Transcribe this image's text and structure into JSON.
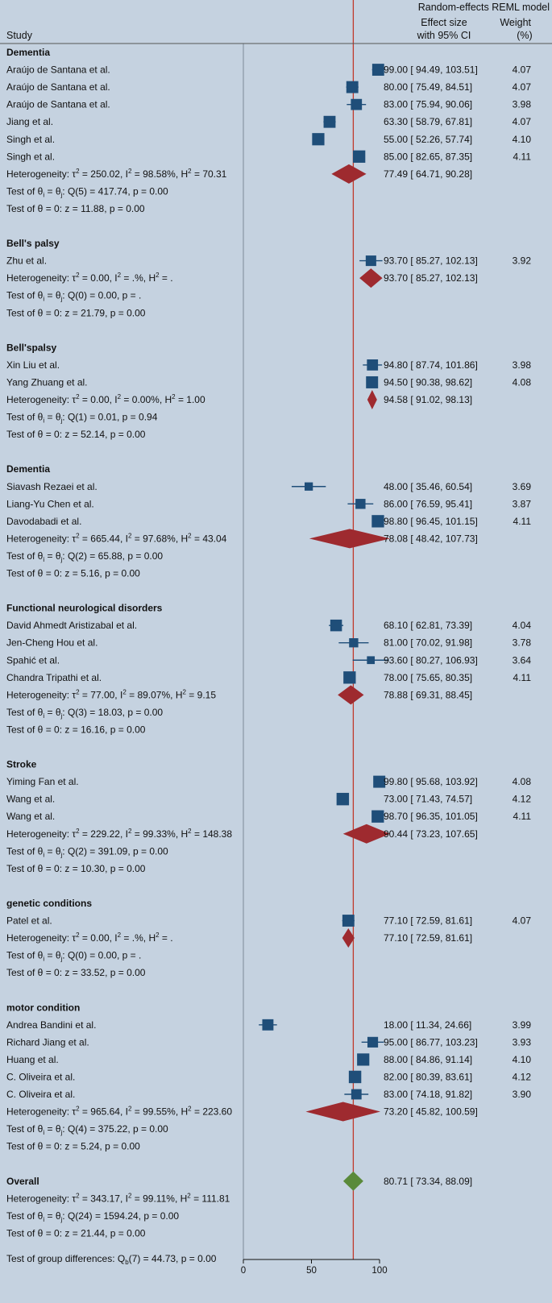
{
  "header": {
    "model": "Random-effects REML model",
    "study": "Study",
    "effect_line1": "Effect size",
    "effect_line2": "with 95% CI",
    "weight_line1": "Weight",
    "weight_line2": "(%)"
  },
  "colors": {
    "background": "#c5d2e0",
    "square": "#1f4e79",
    "diamond": "#9e2a2f",
    "overall_diamond": "#5a8a3a",
    "reference_line": "#c0392b",
    "null_line": "#7d8a99"
  },
  "chart_data": {
    "type": "forest",
    "title": "Random-effects REML model",
    "xlabel": "",
    "xlim": [
      0,
      100
    ],
    "xticks": [
      "0",
      "50",
      "100"
    ],
    "overall_reference": 80.71,
    "groups": [
      {
        "name": "Dementia",
        "studies": [
          {
            "label": "Araújo de Santana et al.",
            "es": 99.0,
            "lo": 94.49,
            "hi": 103.51,
            "es_text": "99.00",
            "lo_text": "94.49",
            "hi_text": "103.51",
            "weight": "4.07"
          },
          {
            "label": "Araújo de Santana et al.",
            "es": 80.0,
            "lo": 75.49,
            "hi": 84.51,
            "es_text": "80.00",
            "lo_text": "75.49",
            "hi_text": "84.51",
            "weight": "4.07"
          },
          {
            "label": "Araújo de Santana et al.",
            "es": 83.0,
            "lo": 75.94,
            "hi": 90.06,
            "es_text": "83.00",
            "lo_text": "75.94",
            "hi_text": "90.06",
            "weight": "3.98"
          },
          {
            "label": "Jiang et al.",
            "es": 63.3,
            "lo": 58.79,
            "hi": 67.81,
            "es_text": "63.30",
            "lo_text": "58.79",
            "hi_text": "67.81",
            "weight": "4.07"
          },
          {
            "label": "Singh et al.",
            "es": 55.0,
            "lo": 52.26,
            "hi": 57.74,
            "es_text": "55.00",
            "lo_text": "52.26",
            "hi_text": "57.74",
            "weight": "4.10"
          },
          {
            "label": "Singh et al.",
            "es": 85.0,
            "lo": 82.65,
            "hi": 87.35,
            "es_text": "85.00",
            "lo_text": "82.65",
            "hi_text": "87.35",
            "weight": "4.11"
          }
        ],
        "summary": {
          "es": 77.49,
          "lo": 64.71,
          "hi": 90.28,
          "es_text": "77.49",
          "lo_text": "64.71",
          "hi_text": "90.28"
        },
        "heterogeneity": {
          "tau2": "250.02",
          "i2": "98.58%",
          "h2": "70.31"
        },
        "q_test": {
          "df": "5",
          "q": "417.74",
          "p": "0.00"
        },
        "z_test": {
          "z": "11.88",
          "p": "0.00"
        }
      },
      {
        "name": "Bell's palsy",
        "studies": [
          {
            "label": "Zhu et al.",
            "es": 93.7,
            "lo": 85.27,
            "hi": 102.13,
            "es_text": "93.70",
            "lo_text": "85.27",
            "hi_text": "102.13",
            "weight": "3.92"
          }
        ],
        "summary": {
          "es": 93.7,
          "lo": 85.27,
          "hi": 102.13,
          "es_text": "93.70",
          "lo_text": "85.27",
          "hi_text": "102.13"
        },
        "heterogeneity": {
          "tau2": "0.00",
          "i2": ".%",
          "h2": "."
        },
        "q_test": {
          "df": "0",
          "q": "0.00",
          "p": "."
        },
        "z_test": {
          "z": "21.79",
          "p": "0.00"
        }
      },
      {
        "name": "Bell'spalsy",
        "studies": [
          {
            "label": "Xin Liu et al.",
            "es": 94.8,
            "lo": 87.74,
            "hi": 101.86,
            "es_text": "94.80",
            "lo_text": "87.74",
            "hi_text": "101.86",
            "weight": "3.98"
          },
          {
            "label": "Yang Zhuang et al.",
            "es": 94.5,
            "lo": 90.38,
            "hi": 98.62,
            "es_text": "94.50",
            "lo_text": "90.38",
            "hi_text": "98.62",
            "weight": "4.08"
          }
        ],
        "summary": {
          "es": 94.58,
          "lo": 91.02,
          "hi": 98.13,
          "es_text": "94.58",
          "lo_text": "91.02",
          "hi_text": "98.13"
        },
        "heterogeneity": {
          "tau2": "0.00",
          "i2": "0.00%",
          "h2": "1.00"
        },
        "q_test": {
          "df": "1",
          "q": "0.01",
          "p": "0.94"
        },
        "z_test": {
          "z": "52.14",
          "p": "0.00"
        }
      },
      {
        "name": "Dementia",
        "studies": [
          {
            "label": "Siavash Rezaei et al.",
            "es": 48.0,
            "lo": 35.46,
            "hi": 60.54,
            "es_text": "48.00",
            "lo_text": "35.46",
            "hi_text": "60.54",
            "weight": "3.69"
          },
          {
            "label": "Liang-Yu Chen et al.",
            "es": 86.0,
            "lo": 76.59,
            "hi": 95.41,
            "es_text": "86.00",
            "lo_text": "76.59",
            "hi_text": "95.41",
            "weight": "3.87"
          },
          {
            "label": "Davodabadi et al.",
            "es": 98.8,
            "lo": 96.45,
            "hi": 101.15,
            "es_text": "98.80",
            "lo_text": "96.45",
            "hi_text": "101.15",
            "weight": "4.11"
          }
        ],
        "summary": {
          "es": 78.08,
          "lo": 48.42,
          "hi": 107.73,
          "es_text": "78.08",
          "lo_text": "48.42",
          "hi_text": "107.73"
        },
        "heterogeneity": {
          "tau2": "665.44",
          "i2": "97.68%",
          "h2": "43.04"
        },
        "q_test": {
          "df": "2",
          "q": "65.88",
          "p": "0.00"
        },
        "z_test": {
          "z": "5.16",
          "p": "0.00"
        }
      },
      {
        "name": "Functional neurological disorders",
        "studies": [
          {
            "label": "David Ahmedt Aristizabal et al.",
            "es": 68.1,
            "lo": 62.81,
            "hi": 73.39,
            "es_text": "68.10",
            "lo_text": "62.81",
            "hi_text": "73.39",
            "weight": "4.04"
          },
          {
            "label": "Jen-Cheng Hou et al.",
            "es": 81.0,
            "lo": 70.02,
            "hi": 91.98,
            "es_text": "81.00",
            "lo_text": "70.02",
            "hi_text": "91.98",
            "weight": "3.78"
          },
          {
            "label": "Spahić et al.",
            "es": 93.6,
            "lo": 80.27,
            "hi": 106.93,
            "es_text": "93.60",
            "lo_text": "80.27",
            "hi_text": "106.93",
            "weight": "3.64"
          },
          {
            "label": "Chandra Tripathi et al.",
            "es": 78.0,
            "lo": 75.65,
            "hi": 80.35,
            "es_text": "78.00",
            "lo_text": "75.65",
            "hi_text": "80.35",
            "weight": "4.11"
          }
        ],
        "summary": {
          "es": 78.88,
          "lo": 69.31,
          "hi": 88.45,
          "es_text": "78.88",
          "lo_text": "69.31",
          "hi_text": "88.45"
        },
        "heterogeneity": {
          "tau2": "77.00",
          "i2": "89.07%",
          "h2": "9.15"
        },
        "q_test": {
          "df": "3",
          "q": "18.03",
          "p": "0.00"
        },
        "z_test": {
          "z": "16.16",
          "p": "0.00"
        }
      },
      {
        "name": "Stroke",
        "studies": [
          {
            "label": "Yiming Fan et al.",
            "es": 99.8,
            "lo": 95.68,
            "hi": 103.92,
            "es_text": "99.80",
            "lo_text": "95.68",
            "hi_text": "103.92",
            "weight": "4.08"
          },
          {
            "label": "Wang et al.",
            "es": 73.0,
            "lo": 71.43,
            "hi": 74.57,
            "es_text": "73.00",
            "lo_text": "71.43",
            "hi_text": "74.57",
            "weight": "4.12"
          },
          {
            "label": "Wang et al.",
            "es": 98.7,
            "lo": 96.35,
            "hi": 101.05,
            "es_text": "98.70",
            "lo_text": "96.35",
            "hi_text": "101.05",
            "weight": "4.11"
          }
        ],
        "summary": {
          "es": 90.44,
          "lo": 73.23,
          "hi": 107.65,
          "es_text": "90.44",
          "lo_text": "73.23",
          "hi_text": "107.65"
        },
        "heterogeneity": {
          "tau2": "229.22",
          "i2": "99.33%",
          "h2": "148.38"
        },
        "q_test": {
          "df": "2",
          "q": "391.09",
          "p": "0.00"
        },
        "z_test": {
          "z": "10.30",
          "p": "0.00"
        }
      },
      {
        "name": "genetic conditions",
        "studies": [
          {
            "label": "Patel et al.",
            "es": 77.1,
            "lo": 72.59,
            "hi": 81.61,
            "es_text": "77.10",
            "lo_text": "72.59",
            "hi_text": "81.61",
            "weight": "4.07"
          }
        ],
        "summary": {
          "es": 77.1,
          "lo": 72.59,
          "hi": 81.61,
          "es_text": "77.10",
          "lo_text": "72.59",
          "hi_text": "81.61"
        },
        "heterogeneity": {
          "tau2": "0.00",
          "i2": ".%",
          "h2": "."
        },
        "q_test": {
          "df": "0",
          "q": "0.00",
          "p": "."
        },
        "z_test": {
          "z": "33.52",
          "p": "0.00"
        }
      },
      {
        "name": "motor condition",
        "studies": [
          {
            "label": "Andrea Bandini et al.",
            "es": 18.0,
            "lo": 11.34,
            "hi": 24.66,
            "es_text": "18.00",
            "lo_text": "11.34",
            "hi_text": "24.66",
            "weight": "3.99"
          },
          {
            "label": "Richard Jiang et al.",
            "es": 95.0,
            "lo": 86.77,
            "hi": 103.23,
            "es_text": "95.00",
            "lo_text": "86.77",
            "hi_text": "103.23",
            "weight": "3.93"
          },
          {
            "label": "Huang et al.",
            "es": 88.0,
            "lo": 84.86,
            "hi": 91.14,
            "es_text": "88.00",
            "lo_text": "84.86",
            "hi_text": "91.14",
            "weight": "4.10"
          },
          {
            "label": "C. Oliveira et al.",
            "es": 82.0,
            "lo": 80.39,
            "hi": 83.61,
            "es_text": "82.00",
            "lo_text": "80.39",
            "hi_text": "83.61",
            "weight": "4.12"
          },
          {
            "label": "C. Oliveira et al.",
            "es": 83.0,
            "lo": 74.18,
            "hi": 91.82,
            "es_text": "83.00",
            "lo_text": "74.18",
            "hi_text": "91.82",
            "weight": "3.90"
          }
        ],
        "summary": {
          "es": 73.2,
          "lo": 45.82,
          "hi": 100.59,
          "es_text": "73.20",
          "lo_text": "45.82",
          "hi_text": "100.59"
        },
        "heterogeneity": {
          "tau2": "965.64",
          "i2": "99.55%",
          "h2": "223.60"
        },
        "q_test": {
          "df": "4",
          "q": "375.22",
          "p": "0.00"
        },
        "z_test": {
          "z": "5.24",
          "p": "0.00"
        }
      }
    ],
    "overall": {
      "label": "Overall",
      "es": 80.71,
      "lo": 73.34,
      "hi": 88.09,
      "es_text": "80.71",
      "lo_text": "73.34",
      "hi_text": "88.09",
      "heterogeneity": {
        "tau2": "343.17",
        "i2": "99.11%",
        "h2": "111.81"
      },
      "q_test": {
        "df": "24",
        "q": "1594.24",
        "p": "0.00"
      },
      "z_test": {
        "z": "21.44",
        "p": "0.00"
      }
    },
    "group_differences": {
      "df": "7",
      "q": "44.73",
      "p": "0.00"
    }
  }
}
